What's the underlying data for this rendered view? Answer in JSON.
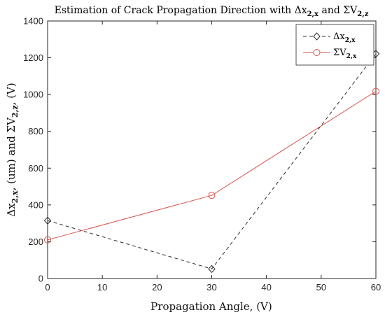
{
  "chart_data": {
    "type": "line",
    "title": {
      "text": "Estimation of Crack Propagation Direction with ",
      "delta": "Δ",
      "x": "x",
      "x_sub": "2,x",
      "and": " and ",
      "sigma": "Σ",
      "v": "V",
      "v_sub": "2,z"
    },
    "xlabel": "Propagation Angle, (V)",
    "ylabel": {
      "delta": "Δ",
      "x": "x",
      "x_sub": "2,x",
      "unit1": ", (um) and ",
      "sigma": "Σ",
      "v": "V",
      "v_sub": "2,z",
      "unit2": ", (V)"
    },
    "xlim": [
      0,
      60
    ],
    "ylim": [
      0,
      1400
    ],
    "x_ticks": [
      0,
      10,
      20,
      30,
      40,
      50,
      60
    ],
    "y_ticks": [
      0,
      200,
      400,
      600,
      800,
      1000,
      1200,
      1400
    ],
    "legend_position": "top-right",
    "series": [
      {
        "legend": {
          "prefix": "Δ",
          "main": "x",
          "sub": "2,x"
        },
        "color": "#2b2b2b",
        "line_style": "dashed",
        "marker": "diamond",
        "x": [
          0,
          30,
          60
        ],
        "y": [
          315,
          52,
          1222
        ]
      },
      {
        "legend": {
          "prefix": "Σ",
          "main": "V",
          "sub": "2,x"
        },
        "color": "#d9534f",
        "line_style": "solid",
        "marker": "circle",
        "x": [
          0,
          30,
          60
        ],
        "y": [
          210,
          452,
          1018
        ]
      }
    ]
  }
}
